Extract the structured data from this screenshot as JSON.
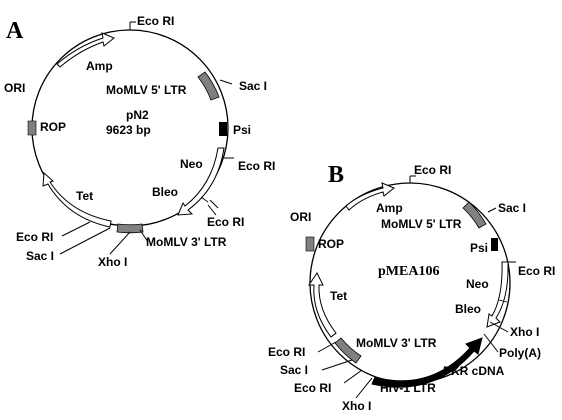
{
  "figure": {
    "panel_a": {
      "panel_label": "A",
      "plasmid_name": "pN2",
      "plasmid_size": "9623 bp",
      "labels": {
        "eco_ri_top": "Eco RI",
        "amp": "Amp",
        "ori": "ORI",
        "rop": "ROP",
        "momlv_5_ltr": "MoMLV 5' LTR",
        "sac_i_right": "Sac I",
        "psi": "Psi",
        "neo": "Neo",
        "eco_ri_right": "Eco RI",
        "bleo": "Bleo",
        "eco_ri_lower_right": "Eco RI",
        "tet": "Tet",
        "momlv_3_ltr": "MoMLV 3' LTR",
        "eco_ri_left": "Eco RI",
        "sac_i_left": "Sac I",
        "xho_i": "Xho I"
      }
    },
    "panel_b": {
      "panel_label": "B",
      "plasmid_name": "pMEA106",
      "labels": {
        "eco_ri_top": "Eco RI",
        "amp": "Amp",
        "momlv_5_ltr": "MoMLV 5' LTR",
        "sac_i_right": "Sac I",
        "ori": "ORI",
        "rop": "ROP",
        "psi": "Psi",
        "eco_ri_right": "Eco RI",
        "neo": "Neo",
        "bleo": "Bleo",
        "tet": "Tet",
        "xho_i_right": "Xho I",
        "poly_a": "Poly(A)",
        "momlv_3_ltr": "MoMLV 3' LTR",
        "pkr_cdna": "PKR cDNA",
        "eco_ri_left_1": "Eco RI",
        "sac_i_left": "Sac I",
        "eco_ri_left_2": "Eco RI",
        "hiv_1_ltr": "HIV-1 LTR",
        "xho_i_bottom": "Xho I"
      }
    }
  },
  "colors": {
    "line": "#000000",
    "ltr_gray": "#808080",
    "background": "#ffffff"
  }
}
